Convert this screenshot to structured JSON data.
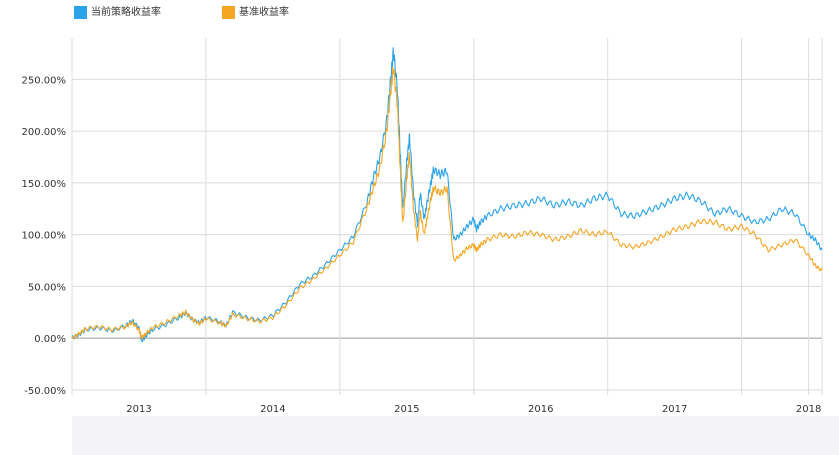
{
  "legend": {
    "items": [
      {
        "label": "当前策略收益率",
        "color": "#2aa3e8"
      },
      {
        "label": "基准收益率",
        "color": "#f5a623"
      }
    ]
  },
  "chart_data": {
    "type": "line",
    "title": "",
    "xlabel": "",
    "ylabel": "",
    "y_tick_labels": [
      "-50.00%",
      "0.00%",
      "50.00%",
      "100.00%",
      "150.00%",
      "200.00%",
      "250.00%"
    ],
    "y_ticks": [
      -50,
      0,
      50,
      100,
      150,
      200,
      250
    ],
    "ylim": [
      -55,
      290
    ],
    "x_tick_labels": [
      "2013",
      "2014",
      "2015",
      "2016",
      "2017",
      "2018"
    ],
    "x_ticks": [
      2013,
      2014,
      2015,
      2016,
      2017,
      2018
    ],
    "xlim": [
      2012.5,
      2018.1
    ],
    "grid": true,
    "legend_position": "top-left",
    "series": [
      {
        "name": "当前策略收益率",
        "color": "#2aa3e8",
        "x": [
          2012.5,
          2012.55,
          2012.6,
          2012.7,
          2012.8,
          2012.9,
          2012.95,
          2013.0,
          2013.02,
          2013.05,
          2013.1,
          2013.2,
          2013.3,
          2013.35,
          2013.4,
          2013.45,
          2013.5,
          2013.6,
          2013.65,
          2013.7,
          2013.8,
          2013.9,
          2014.0,
          2014.1,
          2014.2,
          2014.3,
          2014.4,
          2014.5,
          2014.6,
          2014.7,
          2014.75,
          2014.8,
          2014.85,
          2014.88,
          2014.9,
          2014.93,
          2014.95,
          2014.97,
          2015.0,
          2015.02,
          2015.05,
          2015.08,
          2015.1,
          2015.13,
          2015.15,
          2015.18,
          2015.2,
          2015.25,
          2015.3,
          2015.35,
          2015.4,
          2015.45,
          2015.5,
          2015.52,
          2015.55,
          2015.6,
          2015.7,
          2015.8,
          2015.9,
          2016.0,
          2016.1,
          2016.2,
          2016.3,
          2016.4,
          2016.5,
          2016.6,
          2016.7,
          2016.8,
          2016.9,
          2017.0,
          2017.1,
          2017.2,
          2017.3,
          2017.4,
          2017.5,
          2017.6,
          2017.7,
          2017.8,
          2017.9,
          2018.0,
          2018.05,
          2018.1
        ],
        "values": [
          0,
          3,
          8,
          10,
          7,
          12,
          17,
          10,
          -3,
          2,
          8,
          13,
          20,
          24,
          18,
          15,
          20,
          16,
          12,
          25,
          20,
          17,
          22,
          35,
          52,
          60,
          72,
          85,
          98,
          130,
          155,
          175,
          210,
          250,
          278,
          240,
          180,
          125,
          170,
          195,
          140,
          110,
          140,
          115,
          130,
          150,
          163,
          158,
          162,
          95,
          100,
          108,
          115,
          105,
          112,
          118,
          125,
          128,
          130,
          135,
          128,
          132,
          128,
          135,
          138,
          120,
          118,
          123,
          128,
          135,
          138,
          132,
          120,
          125,
          118,
          112,
          115,
          125,
          120,
          100,
          95,
          85
        ]
      },
      {
        "name": "基准收益率",
        "color": "#f5a623",
        "x": [
          2012.5,
          2012.55,
          2012.6,
          2012.7,
          2012.8,
          2012.9,
          2012.95,
          2013.0,
          2013.02,
          2013.05,
          2013.1,
          2013.2,
          2013.3,
          2013.35,
          2013.4,
          2013.45,
          2013.5,
          2013.6,
          2013.65,
          2013.7,
          2013.8,
          2013.9,
          2014.0,
          2014.1,
          2014.2,
          2014.3,
          2014.4,
          2014.5,
          2014.6,
          2014.7,
          2014.75,
          2014.8,
          2014.85,
          2014.88,
          2014.9,
          2014.93,
          2014.95,
          2014.97,
          2015.0,
          2015.02,
          2015.05,
          2015.08,
          2015.1,
          2015.13,
          2015.15,
          2015.18,
          2015.2,
          2015.25,
          2015.3,
          2015.35,
          2015.4,
          2015.45,
          2015.5,
          2015.52,
          2015.55,
          2015.6,
          2015.7,
          2015.8,
          2015.9,
          2016.0,
          2016.1,
          2016.2,
          2016.3,
          2016.4,
          2016.5,
          2016.6,
          2016.7,
          2016.8,
          2016.9,
          2017.0,
          2017.1,
          2017.2,
          2017.3,
          2017.4,
          2017.5,
          2017.6,
          2017.7,
          2017.8,
          2017.9,
          2018.0,
          2018.05,
          2018.1
        ],
        "values": [
          0,
          4,
          9,
          11,
          8,
          11,
          15,
          8,
          0,
          4,
          10,
          15,
          22,
          25,
          18,
          14,
          19,
          15,
          12,
          23,
          19,
          16,
          20,
          32,
          48,
          57,
          68,
          80,
          93,
          125,
          145,
          165,
          200,
          238,
          262,
          225,
          165,
          110,
          155,
          178,
          125,
          95,
          122,
          100,
          115,
          135,
          145,
          140,
          145,
          75,
          80,
          87,
          90,
          85,
          90,
          95,
          100,
          98,
          102,
          100,
          95,
          98,
          104,
          100,
          103,
          90,
          88,
          92,
          98,
          105,
          108,
          113,
          112,
          105,
          108,
          100,
          85,
          90,
          95,
          80,
          70,
          65
        ]
      }
    ]
  },
  "colors": {
    "grid": "#dcdcdc",
    "zero_line": "#999999",
    "bottom_strip": "#f4f4f6"
  }
}
